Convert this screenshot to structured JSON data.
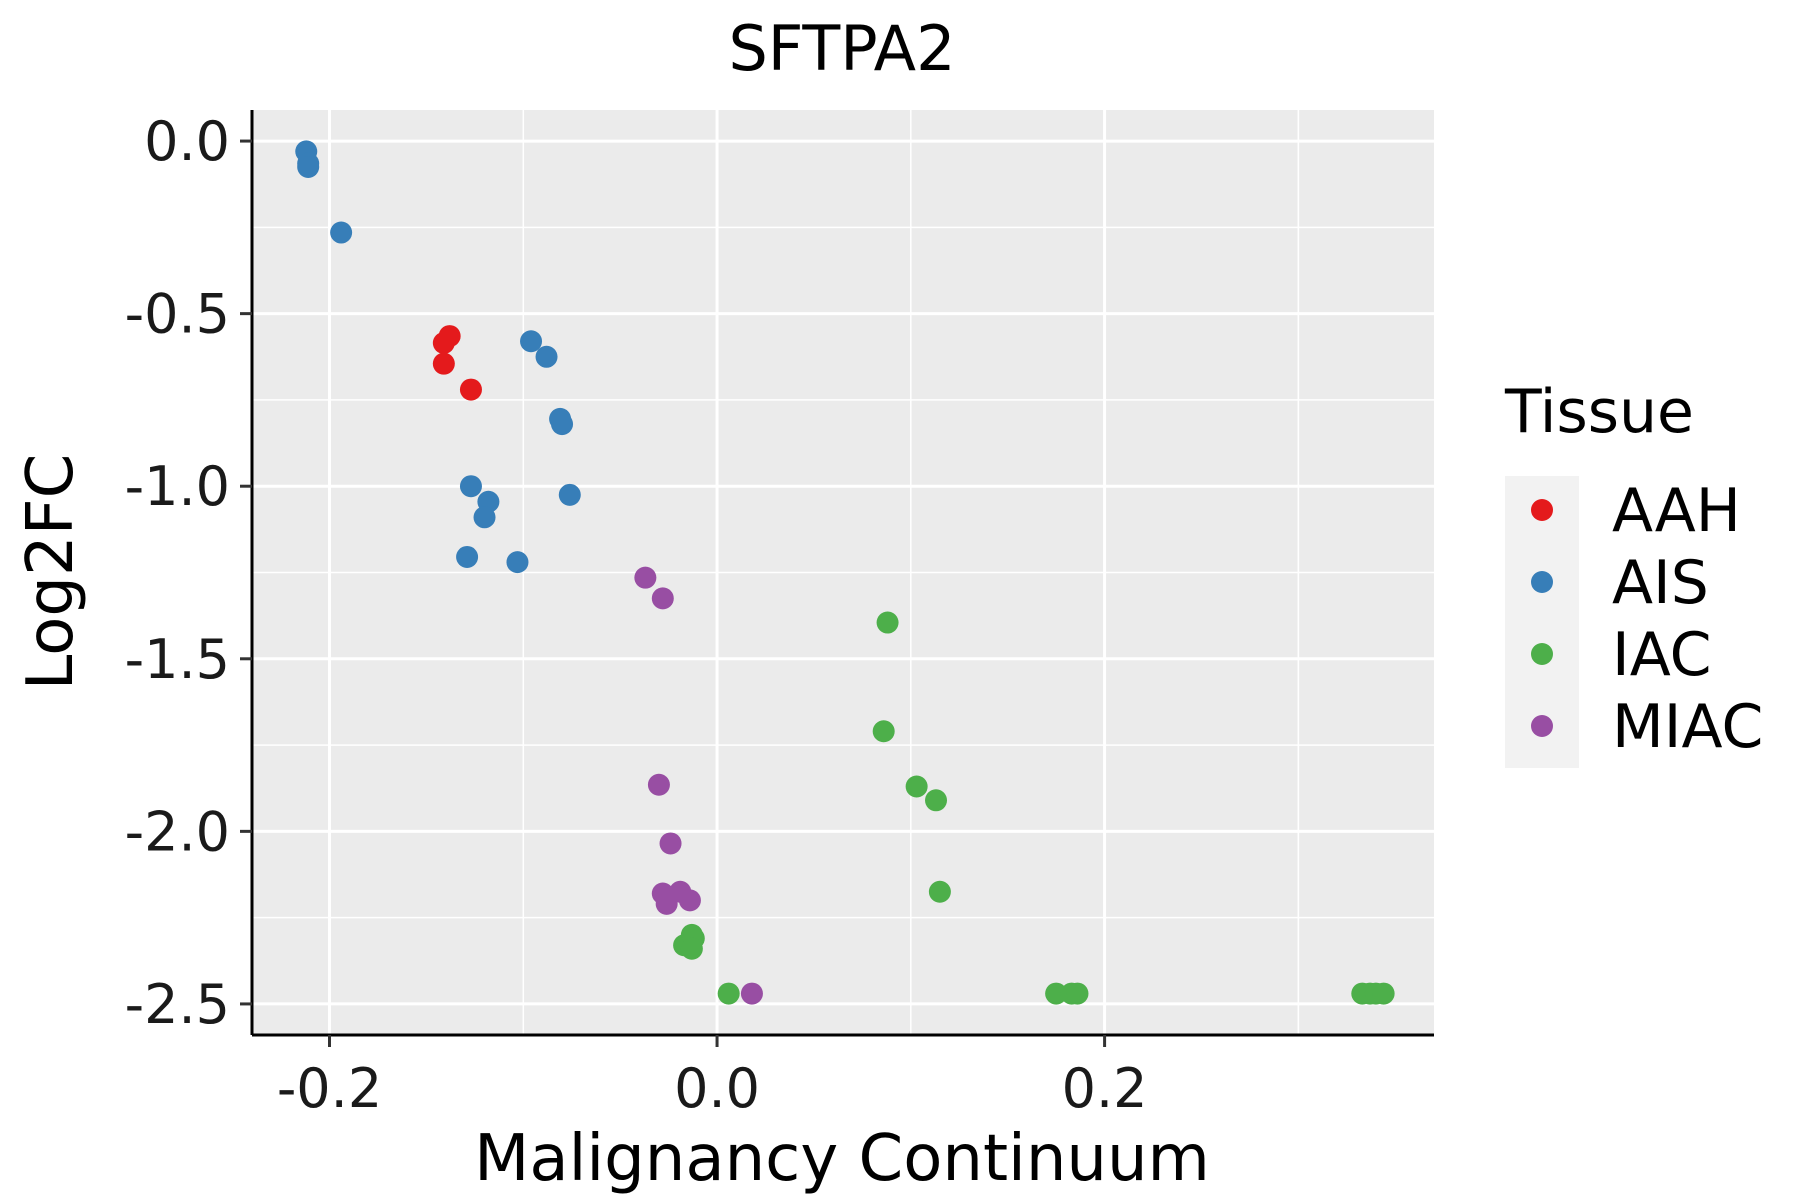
{
  "chart_data": {
    "type": "scatter",
    "title": "SFTPA2",
    "xlabel": "Malignancy Continuum",
    "ylabel": "Log2FC",
    "xlim": [
      -0.24,
      0.37
    ],
    "ylim": [
      -2.59,
      0.09
    ],
    "x_ticks": [
      -0.2,
      0.0,
      0.2
    ],
    "x_tick_labels": [
      "-0.2",
      "0.0",
      "0.2"
    ],
    "y_ticks": [
      0.0,
      -0.5,
      -1.0,
      -1.5,
      -2.0,
      -2.5
    ],
    "y_tick_labels": [
      "0.0",
      "-0.5",
      "-1.0",
      "-1.5",
      "-2.0",
      "-2.5"
    ],
    "grid": true,
    "legend": {
      "title": "Tissue",
      "position": "right"
    },
    "series": [
      {
        "name": "AAH",
        "color": "#E41A1C",
        "x": [
          -0.141,
          -0.138,
          -0.141,
          -0.127
        ],
        "y": [
          -0.585,
          -0.565,
          -0.645,
          -0.72
        ]
      },
      {
        "name": "AIS",
        "color": "#377EB8",
        "x": [
          -0.212,
          -0.211,
          -0.211,
          -0.194,
          -0.096,
          -0.088,
          -0.081,
          -0.08,
          -0.127,
          -0.118,
          -0.12,
          -0.076,
          -0.129,
          -0.103
        ],
        "y": [
          -0.03,
          -0.065,
          -0.075,
          -0.265,
          -0.58,
          -0.625,
          -0.805,
          -0.82,
          -1.0,
          -1.045,
          -1.09,
          -1.025,
          -1.205,
          -1.22
        ]
      },
      {
        "name": "IAC",
        "color": "#4DAF4A",
        "x": [
          0.088,
          0.086,
          0.103,
          0.113,
          0.115,
          -0.013,
          -0.017,
          -0.012,
          -0.013,
          0.006,
          0.175,
          0.183,
          0.186,
          0.333,
          0.337,
          0.34,
          0.344
        ],
        "y": [
          -1.395,
          -1.71,
          -1.87,
          -1.91,
          -2.175,
          -2.3,
          -2.33,
          -2.31,
          -2.34,
          -2.47,
          -2.47,
          -2.47,
          -2.47,
          -2.47,
          -2.47,
          -2.47,
          -2.47
        ]
      },
      {
        "name": "MIAC",
        "color": "#984EA3",
        "x": [
          -0.037,
          -0.028,
          -0.03,
          -0.024,
          -0.028,
          -0.026,
          -0.019,
          -0.014,
          0.018
        ],
        "y": [
          -1.265,
          -1.325,
          -1.865,
          -2.035,
          -2.18,
          -2.21,
          -2.175,
          -2.2,
          -2.47
        ]
      }
    ]
  }
}
